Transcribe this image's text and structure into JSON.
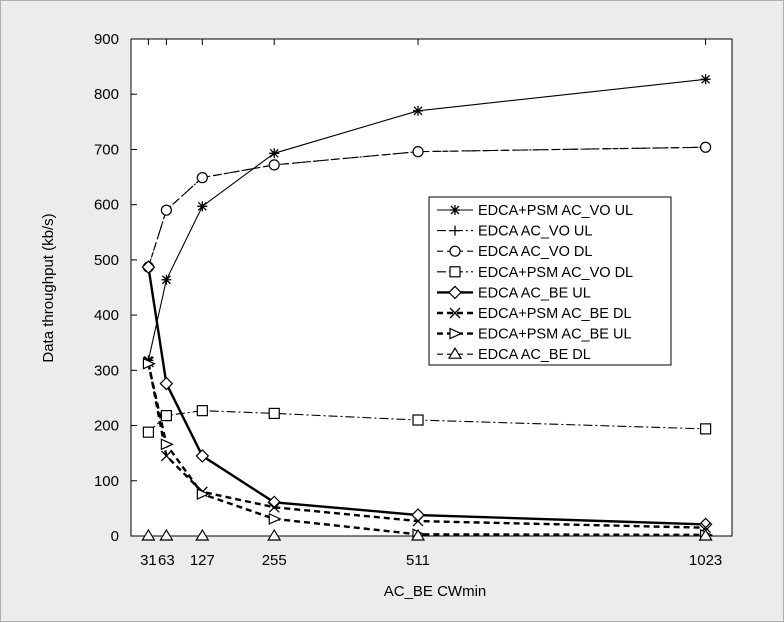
{
  "chart_data": {
    "type": "line",
    "xlabel": "AC_BE CWmin",
    "ylabel": "Data throughput (kb/s)",
    "xlim": [
      0,
      1070
    ],
    "ylim": [
      0,
      900
    ],
    "x_ticks": [
      31,
      63,
      127,
      255,
      511,
      1023
    ],
    "x_tick_labels": [
      "31",
      "63",
      "127",
      "255",
      "511",
      "1023"
    ],
    "y_ticks": [
      0,
      100,
      200,
      300,
      400,
      500,
      600,
      700,
      800,
      900
    ],
    "grid": false,
    "legend_position": "center-right",
    "series": [
      {
        "name": "EDCA+PSM AC_VO UL",
        "marker": "asterisk",
        "line": "solid",
        "weight": "thin",
        "x": [
          31,
          63,
          127,
          255,
          511,
          1023
        ],
        "y": [
          318,
          464,
          597,
          693,
          770,
          827
        ]
      },
      {
        "name": "EDCA AC_VO UL",
        "marker": "plus",
        "line": "dashdot",
        "weight": "thin",
        "x": [
          31,
          63,
          127,
          255,
          511,
          1023
        ],
        "y": [
          487,
          590,
          649,
          672,
          696,
          704
        ]
      },
      {
        "name": "EDCA AC_VO DL",
        "marker": "circle",
        "line": "dashed",
        "weight": "thin",
        "x": [
          31,
          63,
          127,
          255,
          511,
          1023
        ],
        "y": [
          487,
          590,
          649,
          672,
          696,
          704
        ]
      },
      {
        "name": "EDCA+PSM AC_VO DL",
        "marker": "square",
        "line": "dashdot",
        "weight": "thin",
        "x": [
          31,
          63,
          127,
          255,
          511,
          1023
        ],
        "y": [
          188,
          218,
          227,
          222,
          210,
          194
        ]
      },
      {
        "name": "EDCA AC_BE UL",
        "marker": "diamond",
        "line": "solid",
        "weight": "thick",
        "x": [
          31,
          63,
          127,
          255,
          511,
          1023
        ],
        "y": [
          487,
          276,
          145,
          61,
          38,
          21
        ]
      },
      {
        "name": "EDCA+PSM AC_BE DL",
        "marker": "x",
        "line": "dashed",
        "weight": "thick",
        "x": [
          31,
          63,
          127,
          255,
          511,
          1023
        ],
        "y": [
          315,
          145,
          80,
          52,
          27,
          15
        ]
      },
      {
        "name": "EDCA+PSM AC_BE UL",
        "marker": "triangle-right",
        "line": "dashed",
        "weight": "thick",
        "x": [
          31,
          63,
          127,
          255,
          511,
          1023
        ],
        "y": [
          312,
          166,
          76,
          31,
          3,
          2
        ]
      },
      {
        "name": "EDCA AC_BE DL",
        "marker": "triangle-up",
        "line": "dashed",
        "weight": "thin",
        "x": [
          31,
          63,
          127,
          255,
          511,
          1023
        ],
        "y": [
          0,
          0,
          0,
          0,
          0,
          0
        ]
      }
    ]
  }
}
